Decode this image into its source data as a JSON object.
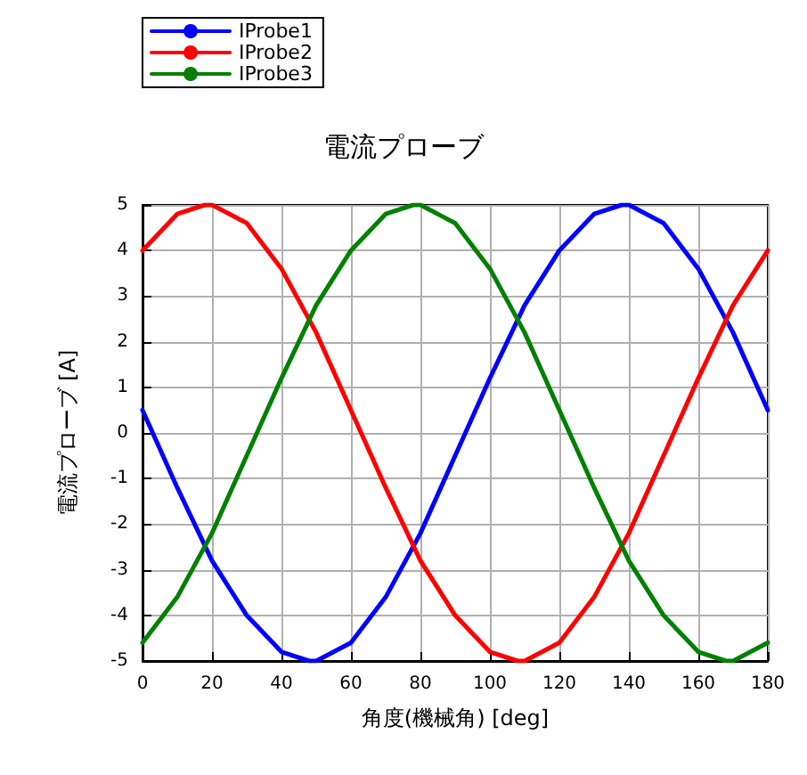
{
  "chart_data": {
    "type": "line",
    "title": "電流プローブ",
    "xlabel": "角度(機械角) [deg]",
    "ylabel": "電流プローブ [A]",
    "xlim": [
      0,
      180
    ],
    "xticks": [
      0,
      20,
      40,
      60,
      80,
      100,
      120,
      140,
      160,
      180
    ],
    "ylim": [
      -5,
      5
    ],
    "yticks": [
      -5,
      -4,
      -3,
      -2,
      -1,
      0,
      1,
      2,
      3,
      4,
      5
    ],
    "grid": true,
    "legend": "top left",
    "marker": "none",
    "line_style": "solid",
    "series": [
      {
        "name": "IProbe1",
        "color": "#0000ff",
        "x": [
          0,
          10,
          20,
          30,
          40,
          48,
          50,
          60,
          70,
          80,
          90,
          100,
          110,
          120,
          130,
          138,
          140,
          150,
          160,
          170,
          180
        ],
        "values": [
          0.5,
          -1.2,
          -2.8,
          -4.0,
          -4.8,
          -5,
          -5.0,
          -4.6,
          -3.6,
          -2.2,
          -0.5,
          1.2,
          2.8,
          4.0,
          4.8,
          5,
          5.0,
          4.6,
          3.6,
          2.2,
          0.5
        ]
      },
      {
        "name": "IProbe2",
        "color": "#ff0000",
        "x": [
          0,
          10,
          18,
          20,
          30,
          40,
          50,
          60,
          70,
          80,
          90,
          100,
          108,
          110,
          120,
          130,
          140,
          150,
          160,
          170,
          180
        ],
        "values": [
          4.0,
          4.8,
          5,
          5.0,
          4.6,
          3.6,
          2.2,
          0.5,
          -1.2,
          -2.8,
          -4.0,
          -4.8,
          -5,
          -5.0,
          -4.6,
          -3.6,
          -2.2,
          -0.5,
          1.2,
          2.8,
          4.0
        ]
      },
      {
        "name": "IProbe3",
        "color": "#008000",
        "x": [
          0,
          10,
          20,
          30,
          40,
          50,
          60,
          70,
          78,
          80,
          90,
          100,
          110,
          120,
          130,
          140,
          150,
          160,
          168,
          170,
          180
        ],
        "values": [
          -4.6,
          -3.6,
          -2.2,
          -0.5,
          1.2,
          2.8,
          4.0,
          4.8,
          5,
          5.0,
          4.6,
          3.6,
          2.2,
          0.5,
          -1.2,
          -2.8,
          -4.0,
          -4.8,
          -5,
          -5.0,
          -4.6
        ]
      }
    ]
  }
}
